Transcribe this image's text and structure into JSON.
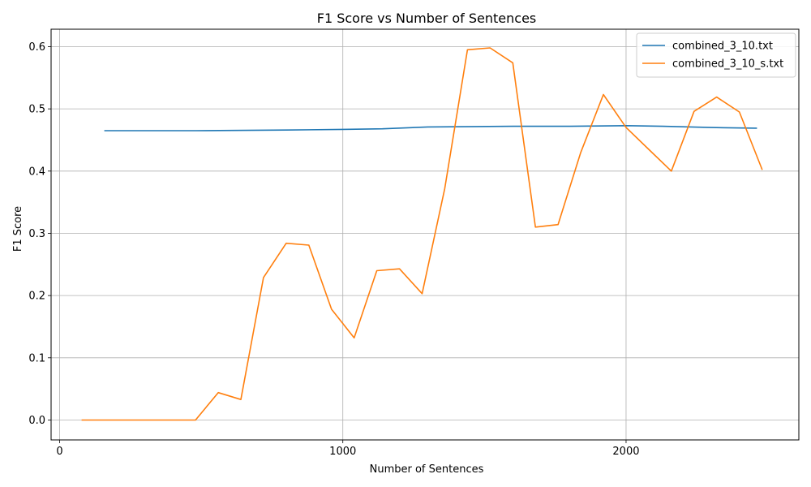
{
  "chart_data": {
    "type": "line",
    "title": "F1 Score vs Number of Sentences",
    "xlabel": "Number of Sentences",
    "ylabel": "F1 Score",
    "xlim": [
      -30,
      2610
    ],
    "ylim": [
      -0.032,
      0.628
    ],
    "xticks": [
      0,
      1000,
      2000
    ],
    "yticks": [
      0.0,
      0.1,
      0.2,
      0.3,
      0.4,
      0.5,
      0.6
    ],
    "ytick_labels": [
      "0.0",
      "0.1",
      "0.2",
      "0.3",
      "0.4",
      "0.5",
      "0.6"
    ],
    "grid": true,
    "legend_position": "top-right",
    "series": [
      {
        "name": "combined_3_10.txt",
        "color": "#1f77b4",
        "x": [
          160,
          480,
          800,
          1000,
          1140,
          1300,
          1600,
          1800,
          2000,
          2130,
          2300,
          2460
        ],
        "y": [
          0.465,
          0.465,
          0.466,
          0.467,
          0.468,
          0.471,
          0.472,
          0.472,
          0.473,
          0.472,
          0.47,
          0.469
        ]
      },
      {
        "name": "combined_3_10_s.txt",
        "color": "#ff7f0e",
        "x": [
          80,
          160,
          240,
          320,
          400,
          480,
          560,
          640,
          720,
          800,
          880,
          960,
          1040,
          1120,
          1200,
          1280,
          1360,
          1440,
          1520,
          1600,
          1680,
          1760,
          1840,
          1920,
          2000,
          2080,
          2160,
          2240,
          2320,
          2400,
          2480
        ],
        "y": [
          0.0,
          0.0,
          0.0,
          0.0,
          0.0,
          0.0,
          0.044,
          0.033,
          0.229,
          0.284,
          0.281,
          0.178,
          0.132,
          0.24,
          0.243,
          0.203,
          0.372,
          0.595,
          0.598,
          0.574,
          0.31,
          0.314,
          0.43,
          0.523,
          0.47,
          0.435,
          0.4,
          0.496,
          0.519,
          0.495,
          0.403
        ]
      }
    ]
  }
}
